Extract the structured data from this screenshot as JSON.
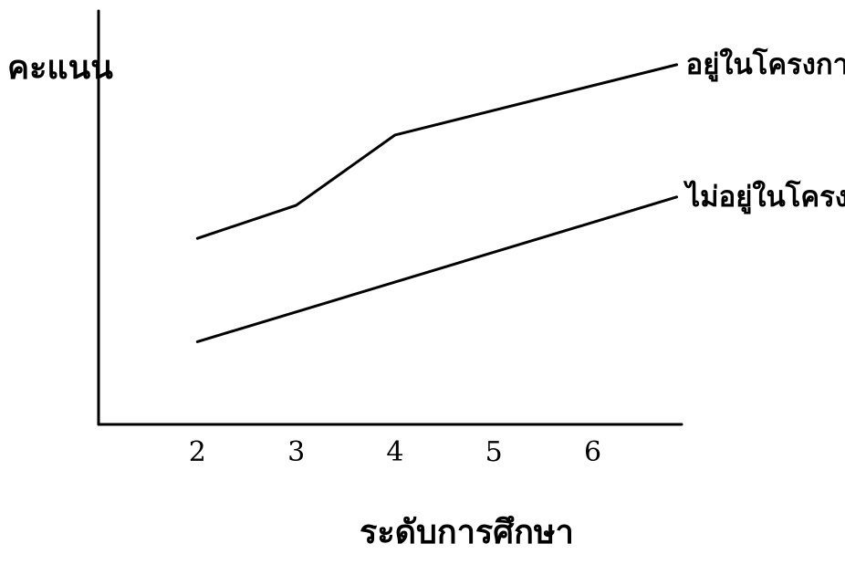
{
  "chart_data": {
    "type": "line",
    "title": "",
    "xlabel": "ระดับการศึกษา",
    "ylabel": "คะแนน",
    "categories": [
      "2",
      "3",
      "4",
      "5",
      "6"
    ],
    "x": [
      2,
      3,
      4,
      5,
      6
    ],
    "xlim": [
      1,
      6.9
    ],
    "ylim": [
      0,
      10
    ],
    "grid": false,
    "legend": "inline-right",
    "series": [
      {
        "name": "อยู่ในโครงการ",
        "x": [
          2,
          3,
          4,
          6.85
        ],
        "values": [
          4.5,
          5.3,
          7.0,
          8.7
        ]
      },
      {
        "name": "ไม่อยู่ในโครงการ",
        "x": [
          2,
          6.85
        ],
        "values": [
          2.0,
          5.5
        ]
      }
    ]
  }
}
